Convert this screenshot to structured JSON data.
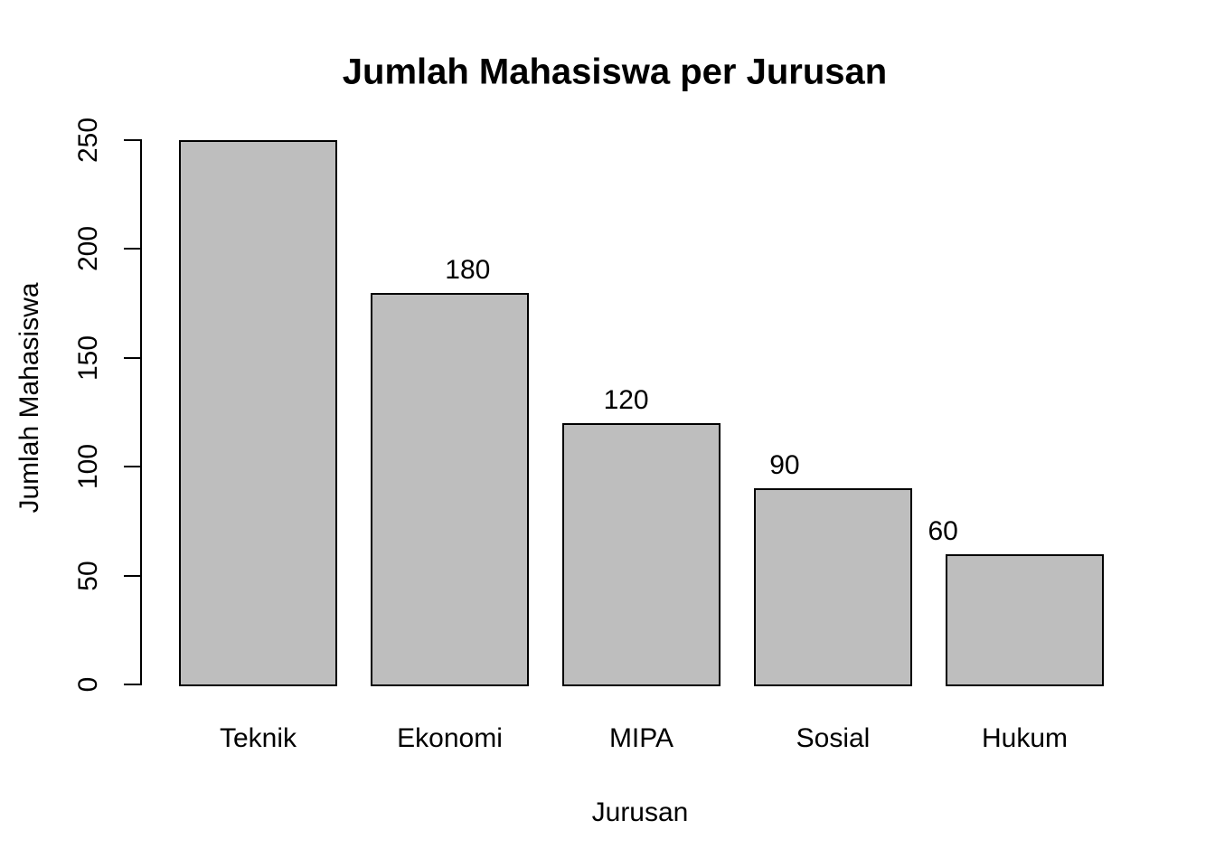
{
  "chart_data": {
    "type": "bar",
    "title": "Jumlah Mahasiswa per Jurusan",
    "xlabel": "Jurusan",
    "ylabel": "Jumlah Mahasiswa",
    "categories": [
      "Teknik",
      "Ekonomi",
      "MIPA",
      "Sosial",
      "Hukum"
    ],
    "values": [
      250,
      180,
      120,
      90,
      60
    ],
    "value_labels": [
      null,
      "180",
      "120",
      "90",
      "60"
    ],
    "yticks": [
      0,
      50,
      100,
      150,
      200,
      250
    ],
    "ylim": [
      0,
      250
    ],
    "grid": false,
    "legend": "none",
    "bar_fill_color": "#bebebe",
    "bar_border_color": "#000000",
    "text_color": "#000000",
    "background_color": "#ffffff"
  }
}
